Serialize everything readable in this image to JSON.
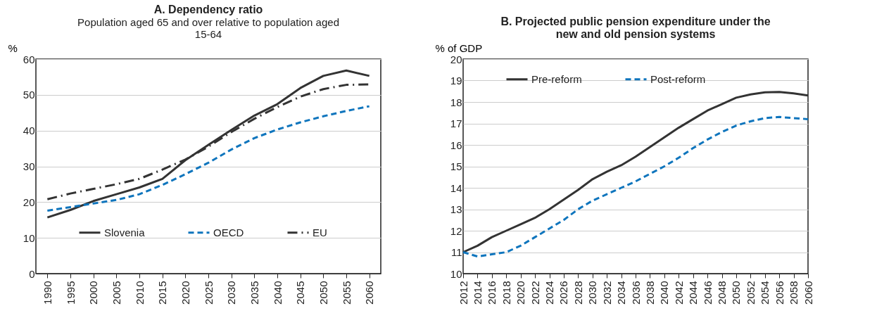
{
  "chart_data": [
    {
      "type": "line",
      "title": "A. Dependency ratio",
      "subtitle": "Population aged 65 and over relative to population aged 15-64",
      "ylabel": "%",
      "categories": [
        "1990",
        "1995",
        "2000",
        "2005",
        "2010",
        "2015",
        "2020",
        "2025",
        "2030",
        "2035",
        "2040",
        "2045",
        "2050",
        "2055",
        "2060"
      ],
      "ylim": [
        0,
        60
      ],
      "yticks": [
        0,
        10,
        20,
        30,
        40,
        50,
        60
      ],
      "grid": "y",
      "legend": "bottom",
      "series": [
        {
          "name": "Slovenia",
          "color": "#333333",
          "line_style": "solid",
          "values": [
            15.7,
            17.8,
            20.3,
            22.2,
            24.1,
            26.5,
            31.7,
            36.0,
            40.2,
            44.2,
            47.4,
            51.9,
            55.3,
            56.8,
            55.3
          ]
        },
        {
          "name": "OECD",
          "color": "#0f75bd",
          "line_style": "dashed",
          "values": [
            17.6,
            18.6,
            19.6,
            20.6,
            22.2,
            24.8,
            27.8,
            31.0,
            34.7,
            37.9,
            40.3,
            42.3,
            44.0,
            45.5,
            46.8
          ]
        },
        {
          "name": "EU",
          "color": "#333333",
          "line_style": "dashdot",
          "values": [
            20.8,
            22.4,
            23.7,
            25.0,
            26.5,
            29.1,
            31.9,
            35.5,
            39.6,
            43.3,
            46.6,
            49.5,
            51.6,
            52.8,
            52.9
          ]
        }
      ]
    },
    {
      "type": "line",
      "title": "B. Projected public pension expenditure under the new and old pension systems",
      "ylabel": "% of GDP",
      "x": [
        2012,
        2014,
        2016,
        2018,
        2020,
        2022,
        2024,
        2026,
        2028,
        2030,
        2032,
        2034,
        2036,
        2038,
        2040,
        2042,
        2044,
        2046,
        2048,
        2050,
        2052,
        2054,
        2056,
        2058,
        2060
      ],
      "xlim": [
        2012,
        2060
      ],
      "xticks": [
        2012,
        2014,
        2016,
        2018,
        2020,
        2022,
        2024,
        2026,
        2028,
        2030,
        2032,
        2034,
        2036,
        2038,
        2040,
        2042,
        2044,
        2046,
        2048,
        2050,
        2052,
        2054,
        2056,
        2058,
        2060
      ],
      "ylim": [
        10,
        20
      ],
      "yticks": [
        10,
        11,
        12,
        13,
        14,
        15,
        16,
        17,
        18,
        19,
        20
      ],
      "grid": "y",
      "legend": "top",
      "series": [
        {
          "name": "Pre-reform",
          "color": "#333333",
          "line_style": "solid",
          "values": [
            11.0,
            11.3,
            11.7,
            12.0,
            12.3,
            12.6,
            13.0,
            13.45,
            13.9,
            14.4,
            14.75,
            15.05,
            15.45,
            15.9,
            16.35,
            16.8,
            17.2,
            17.6,
            17.9,
            18.2,
            18.35,
            18.45,
            18.47,
            18.4,
            18.3
          ]
        },
        {
          "name": "Post-reform",
          "color": "#0f75bd",
          "line_style": "dashed",
          "values": [
            11.0,
            10.8,
            10.9,
            11.0,
            11.3,
            11.7,
            12.1,
            12.5,
            13.0,
            13.4,
            13.7,
            14.0,
            14.3,
            14.65,
            15.0,
            15.4,
            15.85,
            16.25,
            16.6,
            16.9,
            17.1,
            17.25,
            17.3,
            17.25,
            17.2
          ]
        }
      ]
    }
  ]
}
